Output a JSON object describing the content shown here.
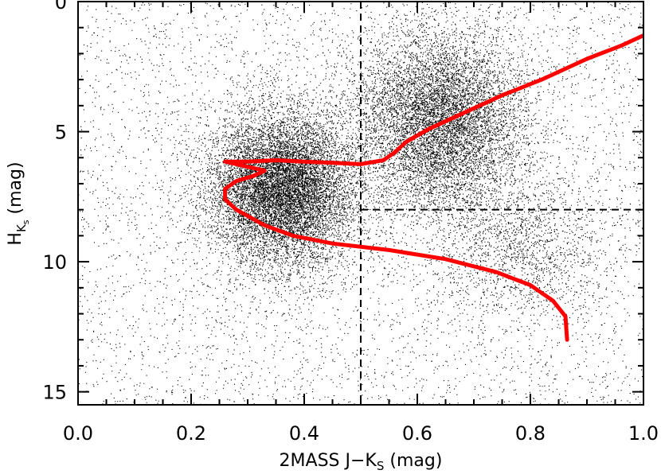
{
  "chart_data": {
    "type": "scatter",
    "xlabel": "2MASS J−K",
    "xlabel_sub": "S",
    "xlabel_unit": "(mag)",
    "ylabel": "H",
    "ylabel_sub": "K",
    "ylabel_subsub": "s",
    "ylabel_unit": "(mag)",
    "xlim": [
      0.0,
      1.0
    ],
    "ylim": [
      15.5,
      0.0
    ],
    "y_inverted": true,
    "x_ticks": [
      0.0,
      0.2,
      0.4,
      0.6,
      0.8,
      1.0
    ],
    "x_tick_labels": [
      "0.0",
      "0.2",
      "0.4",
      "0.6",
      "0.8",
      "1.0"
    ],
    "y_ticks": [
      0,
      5,
      10,
      15
    ],
    "y_tick_labels": [
      "0",
      "5",
      "10",
      "15"
    ],
    "colors": {
      "points": "#000000",
      "curve": "#ff0000",
      "guides": "#000000"
    },
    "point_density": {
      "description_free": true,
      "clumps": [
        {
          "x": 0.36,
          "y": 7.2,
          "sx": 0.065,
          "sy": 1.5,
          "weight": 0.42
        },
        {
          "x": 0.64,
          "y": 4.6,
          "sx": 0.075,
          "sy": 1.7,
          "weight": 0.32
        },
        {
          "x": 0.78,
          "y": 9.5,
          "sx": 0.08,
          "sy": 1.5,
          "weight": 0.06
        }
      ],
      "background_weight": 0.2
    },
    "series": [
      {
        "style": "line",
        "color": "#ff0000",
        "points": [
          [
            0.865,
            13.0
          ],
          [
            0.862,
            12.1
          ],
          [
            0.84,
            11.5
          ],
          [
            0.8,
            10.9
          ],
          [
            0.74,
            10.4
          ],
          [
            0.65,
            9.9
          ],
          [
            0.55,
            9.55
          ],
          [
            0.45,
            9.3
          ],
          [
            0.38,
            9.0
          ],
          [
            0.33,
            8.6
          ],
          [
            0.28,
            8.0
          ],
          [
            0.26,
            7.6
          ],
          [
            0.26,
            7.2
          ],
          [
            0.28,
            6.9
          ],
          [
            0.31,
            6.7
          ],
          [
            0.33,
            6.5
          ],
          [
            0.3,
            6.35
          ],
          [
            0.26,
            6.15
          ],
          [
            0.3,
            6.15
          ],
          [
            0.35,
            6.1
          ],
          [
            0.4,
            6.15
          ],
          [
            0.45,
            6.2
          ],
          [
            0.5,
            6.25
          ],
          [
            0.54,
            6.1
          ],
          [
            0.56,
            5.8
          ],
          [
            0.58,
            5.4
          ],
          [
            0.62,
            4.9
          ],
          [
            0.68,
            4.3
          ],
          [
            0.75,
            3.6
          ],
          [
            0.82,
            3.0
          ],
          [
            0.9,
            2.2
          ],
          [
            0.96,
            1.7
          ],
          [
            1.0,
            1.3
          ]
        ]
      }
    ],
    "guides": [
      {
        "type": "vertical",
        "x": 0.5,
        "y_from": 0.0,
        "y_to": 15.5,
        "dash": true
      },
      {
        "type": "horizontal",
        "y": 8.0,
        "x_from": 0.5,
        "x_to": 1.0,
        "dash": true
      }
    ]
  }
}
